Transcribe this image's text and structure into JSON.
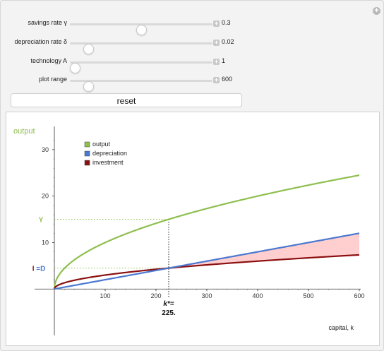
{
  "controls": [
    {
      "id": "savings",
      "label": "savings rate γ",
      "value": "0.3",
      "fraction": 0.5
    },
    {
      "id": "depreciation",
      "label": "depreciation rate δ",
      "value": "0.02",
      "fraction": 0.1
    },
    {
      "id": "technology",
      "label": "technology A",
      "value": "1",
      "fraction": 0.0
    },
    {
      "id": "range",
      "label": "plot range",
      "value": "600",
      "fraction": 0.1
    }
  ],
  "reset_label": "reset",
  "chart_data": {
    "type": "line",
    "ylabel": "output",
    "xlabel": "capital, k",
    "xlim": [
      0,
      600
    ],
    "ylim": [
      -10,
      35
    ],
    "x_ticks": [
      "100",
      "200",
      "300",
      "400",
      "500",
      "600"
    ],
    "y_ticks": [
      "10",
      "20",
      "30"
    ],
    "legend": [
      "output",
      "depreciation",
      "investment"
    ],
    "legend_position": "top-left",
    "series": [
      {
        "name": "output",
        "formula": "y = A*k^0.5",
        "color": "#8fbf4f"
      },
      {
        "name": "depreciation",
        "formula": "d = δ*k",
        "color": "#4a78d0"
      },
      {
        "name": "investment",
        "formula": "i = γ*A*k^0.5",
        "color": "#8b1010"
      }
    ],
    "params": {
      "A": 1,
      "gamma": 0.3,
      "delta": 0.02
    },
    "steady_state": {
      "k_star": 225,
      "output": 15,
      "investment": 4.5
    },
    "labels": {
      "Y": "Y",
      "ID_I": "I",
      "ID_eq": " =D",
      "kstar_line1": "k*=",
      "kstar_line2": "225."
    },
    "shaded_region": "between depreciation and investment for k > k*",
    "shade_color": "#ffcfd0"
  }
}
